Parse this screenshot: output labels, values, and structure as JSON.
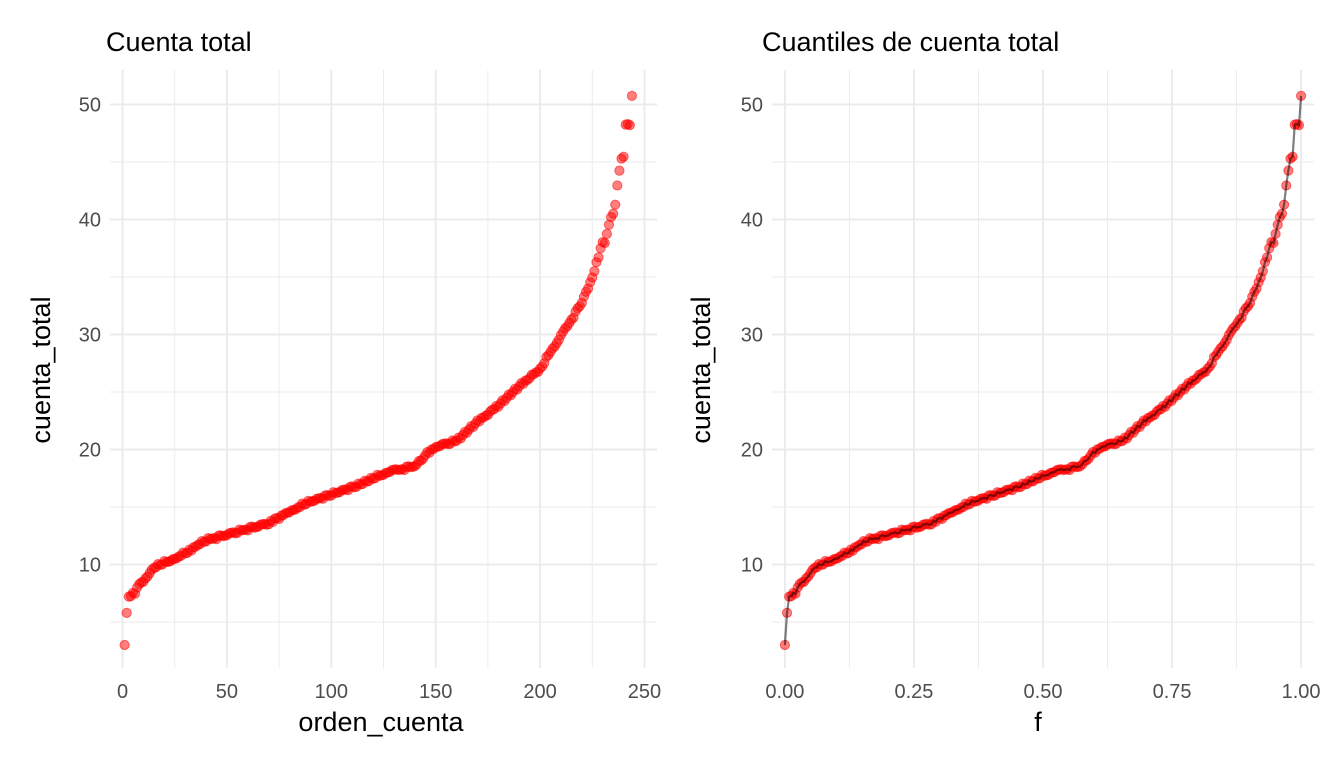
{
  "chart_data": [
    {
      "type": "scatter",
      "title": "Cuenta total",
      "xlabel": "orden_cuenta",
      "ylabel": "cuenta_total",
      "xlim": [
        -6,
        256
      ],
      "ylim": [
        1,
        53
      ],
      "xticks": [
        0,
        50,
        100,
        150,
        200,
        250
      ],
      "yticks": [
        10,
        20,
        30,
        40,
        50
      ],
      "xtick_labels": [
        "0",
        "50",
        "100",
        "150",
        "200",
        "250"
      ],
      "ytick_labels": [
        "10",
        "20",
        "30",
        "40",
        "50"
      ],
      "point_color": "#ff0000",
      "grid": true,
      "n_points": 244,
      "curve_anchors": {
        "x": [
          1,
          2,
          3,
          4,
          6,
          8,
          10,
          12,
          14,
          18,
          22,
          26,
          30,
          40,
          50,
          60,
          70,
          80,
          90,
          100,
          110,
          120,
          130,
          140,
          145,
          150,
          160,
          170,
          180,
          190,
          200,
          205,
          210,
          215,
          220,
          225,
          230,
          231,
          232,
          233,
          234,
          235,
          236,
          237,
          238,
          239,
          240,
          241,
          242,
          243,
          244
        ],
        "y": [
          3.07,
          5.75,
          7.25,
          7.3,
          7.6,
          8.2,
          8.6,
          8.9,
          9.6,
          10.0,
          10.3,
          10.5,
          11.0,
          12.1,
          12.6,
          13.1,
          13.6,
          14.6,
          15.5,
          16.1,
          16.7,
          17.5,
          18.2,
          18.5,
          19.5,
          20.2,
          20.8,
          22.4,
          23.8,
          25.5,
          27.0,
          28.5,
          29.9,
          31.3,
          32.8,
          34.9,
          38.0,
          38.1,
          38.7,
          39.4,
          40.2,
          40.6,
          41.2,
          43.1,
          44.3,
          45.3,
          45.4,
          48.2,
          48.3,
          48.3,
          50.8
        ]
      }
    },
    {
      "type": "line",
      "title": "Cuantiles de cuenta total",
      "xlabel": "f",
      "ylabel": "cuenta_total",
      "xlim": [
        -0.025,
        1.025
      ],
      "ylim": [
        1,
        53
      ],
      "xticks": [
        0.0,
        0.25,
        0.5,
        0.75,
        1.0
      ],
      "yticks": [
        10,
        20,
        30,
        40,
        50
      ],
      "xtick_labels": [
        "0.00",
        "0.25",
        "0.50",
        "0.75",
        "1.00"
      ],
      "ytick_labels": [
        "10",
        "20",
        "30",
        "40",
        "50"
      ],
      "point_color": "#ff0000",
      "line_color": "#000000",
      "grid": true,
      "description_of_x": "f = (orden_cuenta - 1) / (n - 1)",
      "n_points": 244
    }
  ]
}
